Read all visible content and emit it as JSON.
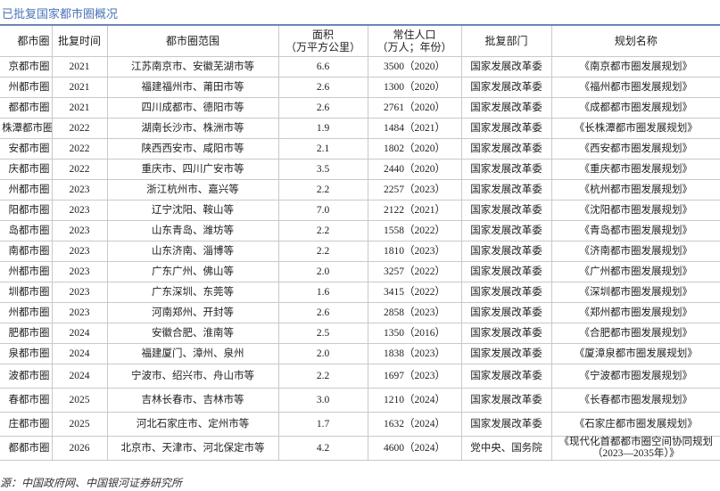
{
  "title": "已批复国家都市圈概况",
  "table": {
    "headers": [
      "都市圈",
      "批复时间",
      "都市圈范围",
      "面积\n（万平方公里）",
      "常住人口\n（万人；年份）",
      "批复部门",
      "规划名称"
    ],
    "rows": [
      [
        "京都市圈",
        "2021",
        "江苏南京市、安徽芜湖市等",
        "6.6",
        "3500（2020）",
        "国家发展改革委",
        "《南京都市圈发展规划》"
      ],
      [
        "州都市圈",
        "2021",
        "福建福州市、莆田市等",
        "2.6",
        "1300（2020）",
        "国家发展改革委",
        "《福州都市圈发展规划》"
      ],
      [
        "都都市圈",
        "2021",
        "四川成都市、德阳市等",
        "2.6",
        "2761（2020）",
        "国家发展改革委",
        "《成都都市圈发展规划》"
      ],
      [
        "株潭都市圈",
        "2022",
        "湖南长沙市、株洲市等",
        "1.9",
        "1484（2021）",
        "国家发展改革委",
        "《长株潭都市圈发展规划》"
      ],
      [
        "安都市圈",
        "2022",
        "陕西西安市、咸阳市等",
        "2.1",
        "1802（2020）",
        "国家发展改革委",
        "《西安都市圈发展规划》"
      ],
      [
        "庆都市圈",
        "2022",
        "重庆市、四川广安市等",
        "3.5",
        "2440（2020）",
        "国家发展改革委",
        "《重庆都市圈发展规划》"
      ],
      [
        "州都市圈",
        "2023",
        "浙江杭州市、嘉兴等",
        "2.2",
        "2257（2023）",
        "国家发展改革委",
        "《杭州都市圈发展规划》"
      ],
      [
        "阳都市圈",
        "2023",
        "辽宁沈阳、鞍山等",
        "7.0",
        "2122（2021）",
        "国家发展改革委",
        "《沈阳都市圈发展规划》"
      ],
      [
        "岛都市圈",
        "2023",
        "山东青岛、潍坊等",
        "2.2",
        "1558（2022）",
        "国家发展改革委",
        "《青岛都市圈发展规划》"
      ],
      [
        "南都市圈",
        "2023",
        "山东济南、淄博等",
        "2.2",
        "1810（2023）",
        "国家发展改革委",
        "《济南都市圈发展规划》"
      ],
      [
        "州都市圈",
        "2023",
        "广东广州、佛山等",
        "2.0",
        "3257（2022）",
        "国家发展改革委",
        "《广州都市圈发展规划》"
      ],
      [
        "圳都市圈",
        "2023",
        "广东深圳、东莞等",
        "1.6",
        "3415（2022）",
        "国家发展改革委",
        "《深圳都市圈发展规划》"
      ],
      [
        "州都市圈",
        "2023",
        "河南郑州、开封等",
        "2.6",
        "2858（2023）",
        "国家发展改革委",
        "《郑州都市圈发展规划》"
      ],
      [
        "肥都市圈",
        "2024",
        "安徽合肥、淮南等",
        "2.5",
        "1350（2016）",
        "国家发展改革委",
        "《合肥都市圈发展规划》"
      ],
      [
        "泉都市圈",
        "2024",
        "福建厦门、漳州、泉州",
        "2.0",
        "1838（2023）",
        "国家发展改革委",
        "《厦漳泉都市圈发展规划》"
      ],
      [
        "波都市圈",
        "2024",
        "宁波市、绍兴市、舟山市等",
        "2.2",
        "1697（2023）",
        "国家发展改革委",
        "《宁波都市圈发展规划》"
      ],
      [
        "春都市圈",
        "2025",
        "吉林长春市、吉林市等",
        "3.0",
        "1210（2024）",
        "国家发展改革委",
        "《长春都市圈发展规划》"
      ],
      [
        "庄都市圈",
        "2025",
        "河北石家庄市、定州市等",
        "1.7",
        "1632（2024）",
        "国家发展改革委",
        "《石家庄都市圈发展规划》"
      ],
      [
        "都都市圈",
        "2026",
        "北京市、天津市、河北保定市等",
        "4.2",
        "4600（2024）",
        "党中央、国务院",
        "《现代化首都都市圈空间协同规划（2023—2035年）》"
      ]
    ]
  },
  "source": "源：中国政府网、中国银河证券研究所"
}
